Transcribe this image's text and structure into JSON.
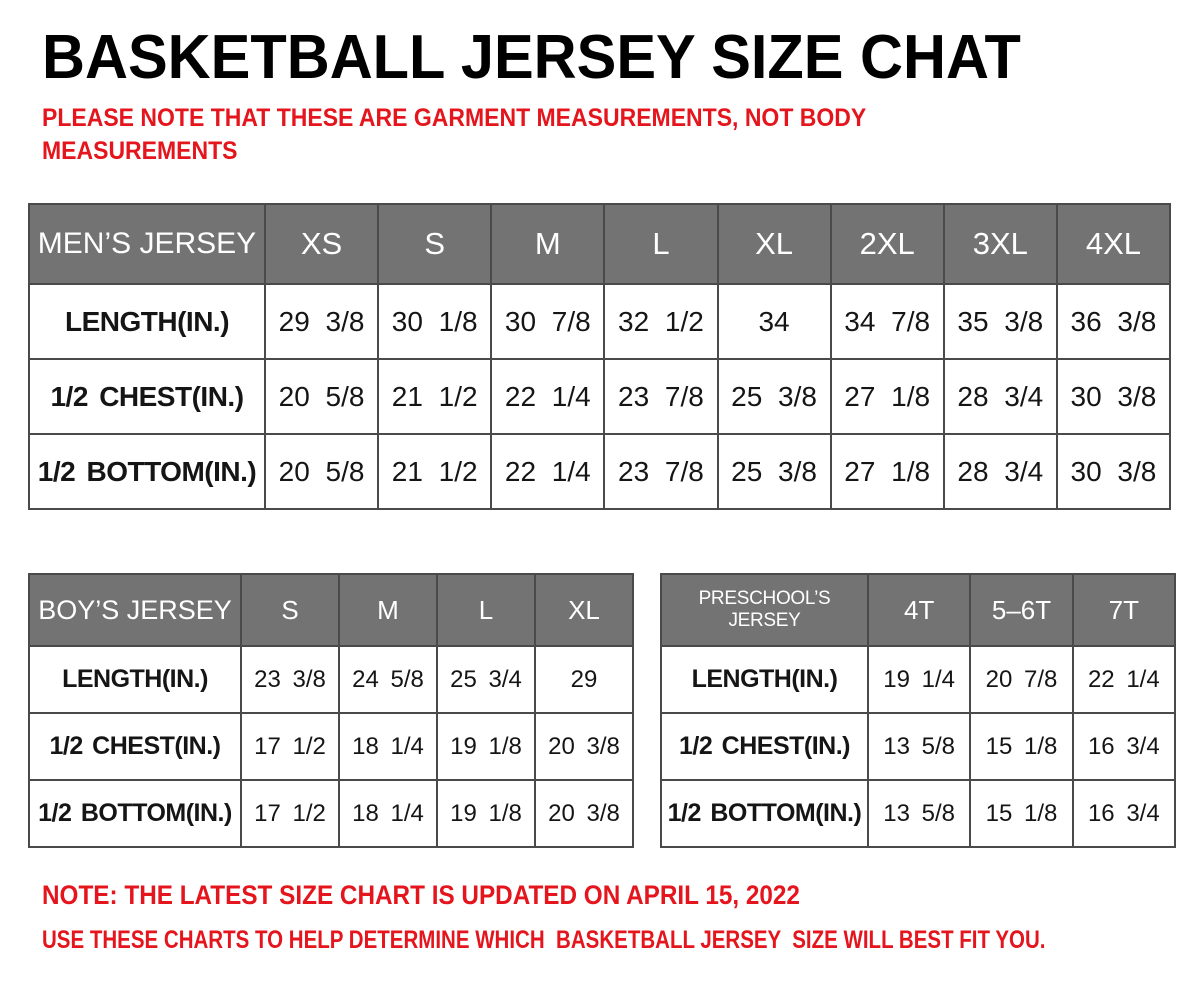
{
  "page": {
    "title": "BASKETBALL JERSEY SIZE CHAT",
    "subtitle": "PLEASE NOTE THAT THESE ARE GARMENT MEASUREMENTS, NOT BODY MEASUREMENTS",
    "footer_note1": "NOTE: THE LATEST SIZE CHART IS UPDATED ON APRIL 15, 2022",
    "footer_note2": "USE THESE CHARTS TO HELP DETERMINE WHICH  BASKETBALL JERSEY  SIZE WILL BEST FIT YOU."
  },
  "colors": {
    "note_red": "#e4151c",
    "header_gray": "#737373",
    "table_border": "#4a4a4a",
    "text_black": "#151515"
  },
  "tables": {
    "mens": {
      "header": [
        "MEN’S JERSEY",
        "XS",
        "S",
        "M",
        "L",
        "XL",
        "2XL",
        "3XL",
        "4XL"
      ],
      "rows": [
        {
          "label": "LENGTH(IN.)",
          "values": [
            "29 3/8",
            "30 1/8",
            "30 7/8",
            "32 1/2",
            "34",
            "34 7/8",
            "35 3/8",
            "36 3/8"
          ]
        },
        {
          "label": "1/2 CHEST(IN.)",
          "values": [
            "20 5/8",
            "21 1/2",
            "22 1/4",
            "23 7/8",
            "25 3/8",
            "27 1/8",
            "28 3/4",
            "30 3/8"
          ]
        },
        {
          "label": "1/2 BOTTOM(IN.)",
          "values": [
            "20 5/8",
            "21 1/2",
            "22 1/4",
            "23 7/8",
            "25 3/8",
            "27 1/8",
            "28 3/4",
            "30 3/8"
          ]
        }
      ]
    },
    "boys": {
      "header": [
        "BOY’S JERSEY",
        "S",
        "M",
        "L",
        "XL"
      ],
      "rows": [
        {
          "label": "LENGTH(IN.)",
          "values": [
            "23 3/8",
            "24 5/8",
            "25 3/4",
            "29"
          ]
        },
        {
          "label": "1/2 CHEST(IN.)",
          "values": [
            "17 1/2",
            "18 1/4",
            "19 1/8",
            "20 3/8"
          ]
        },
        {
          "label": "1/2 BOTTOM(IN.)",
          "values": [
            "17 1/2",
            "18 1/4",
            "19 1/8",
            "20 3/8"
          ]
        }
      ]
    },
    "preschool": {
      "header": [
        "PRESCHOOL’S JERSEY",
        "4T",
        "5–6T",
        "7T"
      ],
      "rows": [
        {
          "label": "LENGTH(IN.)",
          "values": [
            "19 1/4",
            "20 7/8",
            "22 1/4"
          ]
        },
        {
          "label": "1/2 CHEST(IN.)",
          "values": [
            "13 5/8",
            "15 1/8",
            "16 3/4"
          ]
        },
        {
          "label": "1/2 BOTTOM(IN.)",
          "values": [
            "13 5/8",
            "15 1/8",
            "16 3/4"
          ]
        }
      ]
    }
  }
}
